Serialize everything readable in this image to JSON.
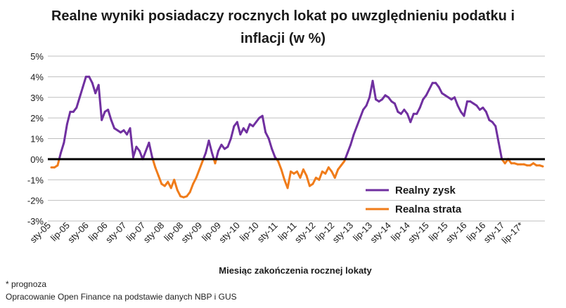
{
  "chart_data": {
    "type": "line",
    "title_line1": "Realne wyniki posiadaczy rocznych lokat po uwzględnieniu podatku i",
    "title_line2": "inflacji (w %)",
    "xlabel": "Miesiąc zakończenia  rocznej lokaty",
    "ylabel": "",
    "ylim": [
      -3,
      5
    ],
    "yticks": [
      "-3%",
      "-2%",
      "-1%",
      "0%",
      "1%",
      "2%",
      "3%",
      "4%",
      "5%"
    ],
    "ytick_values": [
      -3,
      -2,
      -1,
      0,
      1,
      2,
      3,
      4,
      5
    ],
    "xticks": [
      "sty-05",
      "lip-05",
      "sty-06",
      "lip-06",
      "sty-07",
      "lip-07",
      "sty-08",
      "lip-08",
      "sty-09",
      "lip-09",
      "sty-10",
      "lip-10",
      "sty-11",
      "lip-11",
      "sty-12",
      "lip-12",
      "sty-13",
      "lip-13",
      "sty-14",
      "lip-14",
      "sty-15",
      "lip-15",
      "sty-16",
      "lip-16",
      "sty-17",
      "lip-17*"
    ],
    "xtick_indices": [
      0,
      6,
      12,
      18,
      24,
      30,
      36,
      42,
      48,
      54,
      60,
      66,
      72,
      78,
      84,
      90,
      96,
      102,
      108,
      114,
      120,
      126,
      132,
      138,
      144,
      150
    ],
    "grid": true,
    "legend_position": "lower-right",
    "series_colors": {
      "zysk": "#7030a0",
      "strata": "#f07c1a",
      "zero": "#000000"
    },
    "series": [
      {
        "name": "Realny zysk / Realna strata",
        "start": "sty-05",
        "values": [
          -0.4,
          -0.4,
          -0.3,
          0.3,
          0.8,
          1.7,
          2.3,
          2.3,
          2.5,
          3.0,
          3.5,
          4.0,
          4.0,
          3.7,
          3.2,
          3.6,
          1.9,
          2.3,
          2.4,
          1.9,
          1.5,
          1.4,
          1.3,
          1.4,
          1.2,
          1.5,
          0.1,
          0.6,
          0.4,
          0.0,
          0.4,
          0.8,
          0.1,
          -0.4,
          -0.8,
          -1.2,
          -1.3,
          -1.1,
          -1.4,
          -1.0,
          -1.5,
          -1.8,
          -1.85,
          -1.8,
          -1.6,
          -1.2,
          -0.9,
          -0.5,
          -0.1,
          0.3,
          0.9,
          0.3,
          -0.2,
          0.4,
          0.7,
          0.5,
          0.6,
          1.0,
          1.6,
          1.8,
          1.2,
          1.5,
          1.3,
          1.7,
          1.6,
          1.8,
          2.0,
          2.1,
          1.3,
          1.0,
          0.5,
          0.1,
          -0.1,
          -0.5,
          -1.0,
          -1.4,
          -0.6,
          -0.7,
          -0.6,
          -0.9,
          -0.5,
          -0.8,
          -1.3,
          -1.2,
          -0.9,
          -1.0,
          -0.6,
          -0.7,
          -0.4,
          -0.6,
          -0.9,
          -0.5,
          -0.3,
          -0.1,
          0.3,
          0.7,
          1.2,
          1.6,
          2.0,
          2.4,
          2.6,
          3.0,
          3.8,
          2.9,
          2.8,
          2.9,
          3.1,
          3.0,
          2.8,
          2.7,
          2.3,
          2.2,
          2.4,
          2.2,
          1.8,
          2.2,
          2.2,
          2.5,
          2.9,
          3.1,
          3.4,
          3.7,
          3.7,
          3.5,
          3.2,
          3.1,
          3.0,
          2.9,
          3.0,
          2.6,
          2.3,
          2.1,
          2.8,
          2.8,
          2.7,
          2.6,
          2.4,
          2.5,
          2.3,
          1.9,
          1.8,
          1.6,
          0.8,
          0.0,
          -0.2,
          0.0,
          -0.2,
          -0.2,
          -0.25,
          -0.25,
          -0.25,
          -0.3,
          -0.3,
          -0.2,
          -0.3,
          -0.3,
          -0.35
        ]
      }
    ],
    "legend": [
      {
        "label": "Realny zysk",
        "color": "#7030a0"
      },
      {
        "label": "Realna strata",
        "color": "#f07c1a"
      }
    ]
  },
  "footnotes": {
    "forecast": "* prognoza",
    "source": "Opracowanie Open Finance na podstawie danych NBP i GUS"
  }
}
